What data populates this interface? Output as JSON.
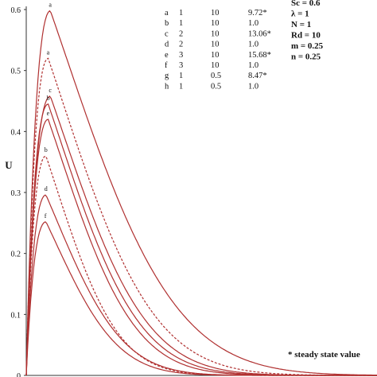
{
  "chart_data": {
    "type": "line",
    "title": "",
    "xlabel": "",
    "ylabel": "U",
    "ylim": [
      0,
      0.6
    ],
    "xlim": [
      0,
      8
    ],
    "yticks": [
      "0",
      "0.1",
      "0.2",
      "0.3",
      "0.4",
      "0.5",
      "0.6"
    ],
    "colors": {
      "curve": "#b03030",
      "axis": "#333333",
      "text": "#111111"
    },
    "table": {
      "rows": [
        {
          "label": "a",
          "c1": "1",
          "c2": "10",
          "c3": "9.72*"
        },
        {
          "label": "b",
          "c1": "1",
          "c2": "10",
          "c3": "1.0"
        },
        {
          "label": "c",
          "c1": "2",
          "c2": "10",
          "c3": "13.06*"
        },
        {
          "label": "d",
          "c1": "2",
          "c2": "10",
          "c3": "1.0"
        },
        {
          "label": "e",
          "c1": "3",
          "c2": "10",
          "c3": "15.68*"
        },
        {
          "label": "f",
          "c1": "3",
          "c2": "10",
          "c3": "1.0"
        },
        {
          "label": "g",
          "c1": "1",
          "c2": "0.5",
          "c3": "8.47*"
        },
        {
          "label": "h",
          "c1": "1",
          "c2": "0.5",
          "c3": "1.0"
        }
      ]
    },
    "params": [
      "Sc = 0.6",
      "λ = 1",
      "N = 1",
      "Rd = 10",
      "m = 0.25",
      "n = 0.25"
    ],
    "note": "* steady state value",
    "series": [
      {
        "label": "a",
        "dash": false,
        "peak_x": 0.55,
        "peak_y": 0.598,
        "tail": 2.6
      },
      {
        "label": "a",
        "dash": true,
        "peak_x": 0.5,
        "peak_y": 0.52,
        "tail": 2.2
      },
      {
        "label": "c",
        "dash": false,
        "peak_x": 0.55,
        "peak_y": 0.458,
        "tail": 2.0
      },
      {
        "label": "b",
        "dash": false,
        "peak_x": 0.5,
        "peak_y": 0.445,
        "tail": 1.9
      },
      {
        "label": "e",
        "dash": false,
        "peak_x": 0.5,
        "peak_y": 0.42,
        "tail": 1.8
      },
      {
        "label": "b",
        "dash": true,
        "peak_x": 0.45,
        "peak_y": 0.36,
        "tail": 1.5
      },
      {
        "label": "d",
        "dash": false,
        "peak_x": 0.45,
        "peak_y": 0.296,
        "tail": 1.6
      },
      {
        "label": "f",
        "dash": false,
        "peak_x": 0.45,
        "peak_y": 0.252,
        "tail": 1.5
      }
    ]
  }
}
